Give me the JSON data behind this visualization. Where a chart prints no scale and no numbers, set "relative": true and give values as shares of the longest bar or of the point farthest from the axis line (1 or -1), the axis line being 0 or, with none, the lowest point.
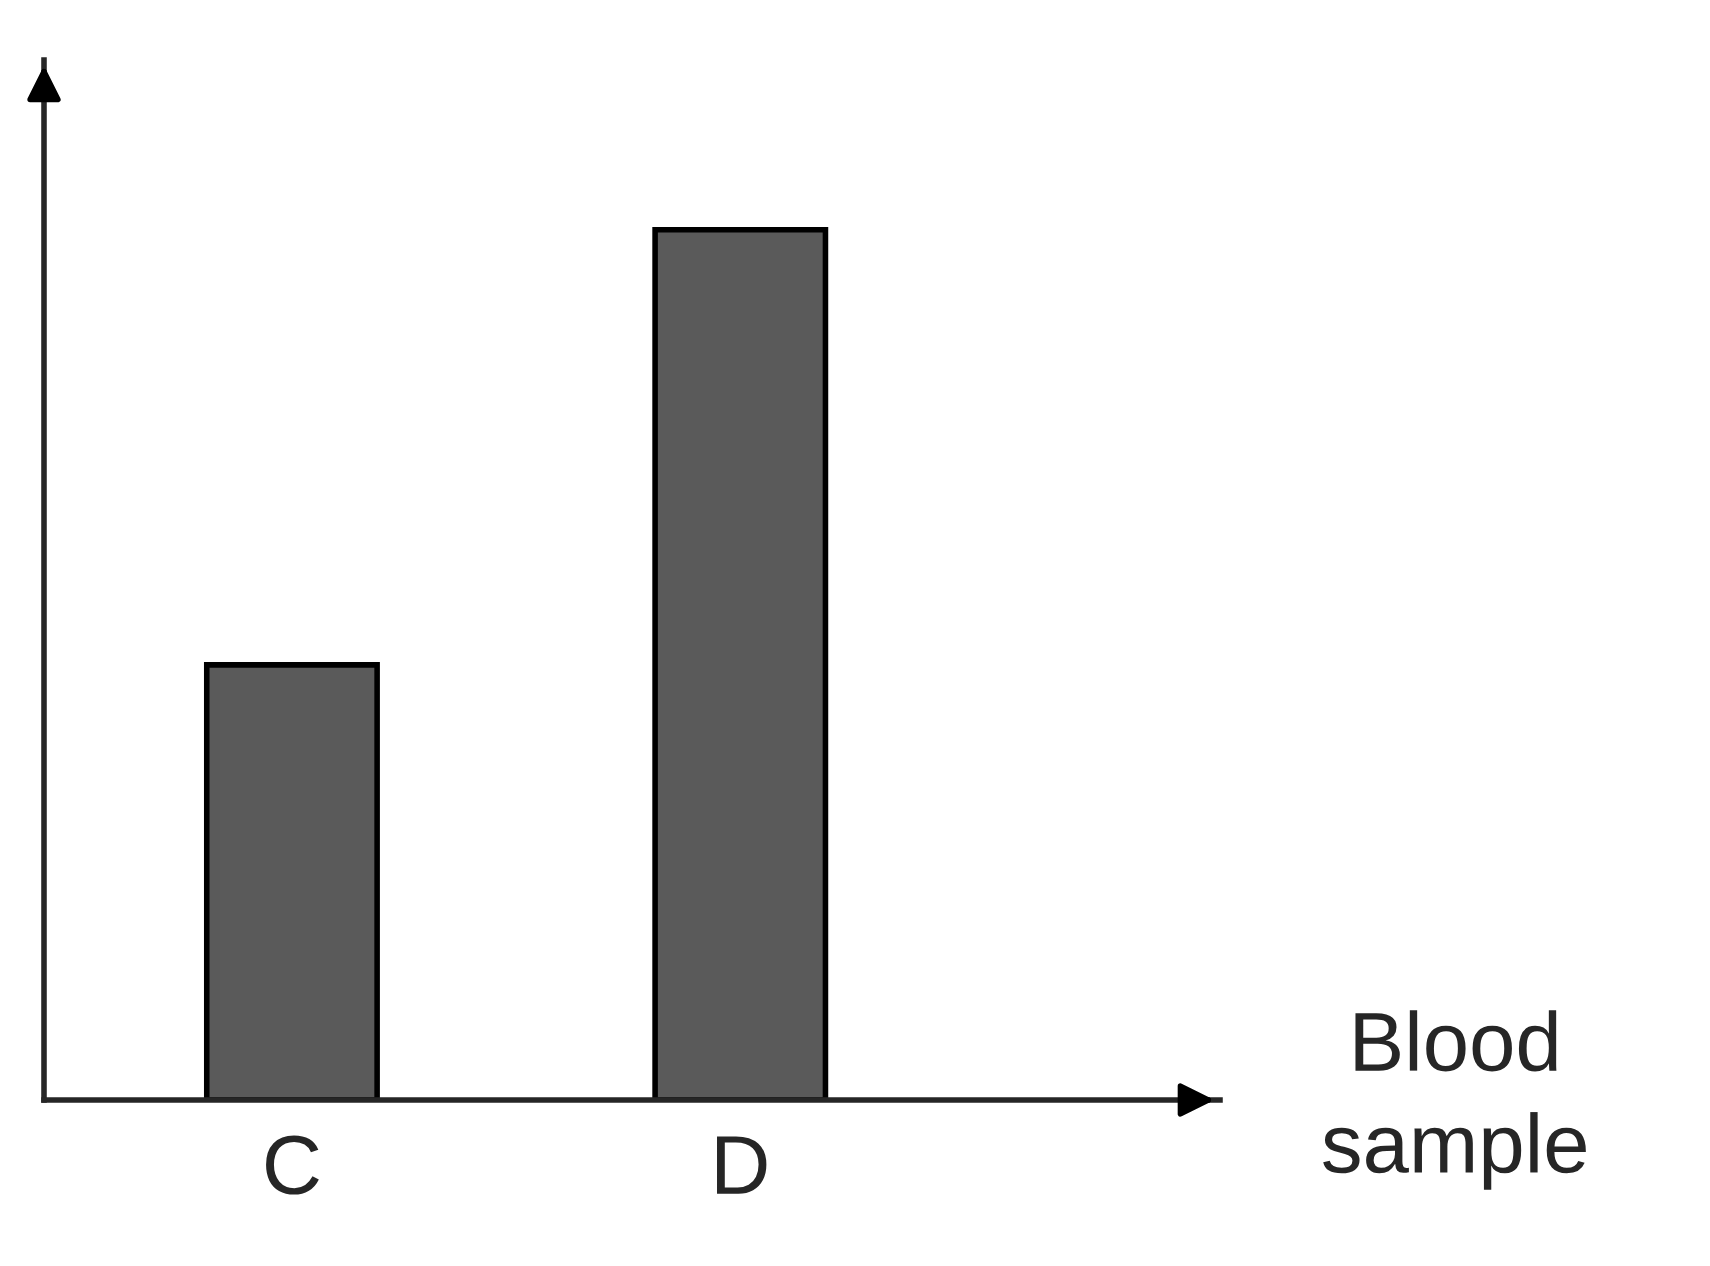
{
  "chart_data": {
    "type": "bar",
    "categories": [
      "C",
      "D"
    ],
    "values": [
      0.5,
      1
    ],
    "color": "#5a5a5a",
    "relative": true,
    "xlabel": "Blood\nsample",
    "grid": false,
    "legend": false
  }
}
